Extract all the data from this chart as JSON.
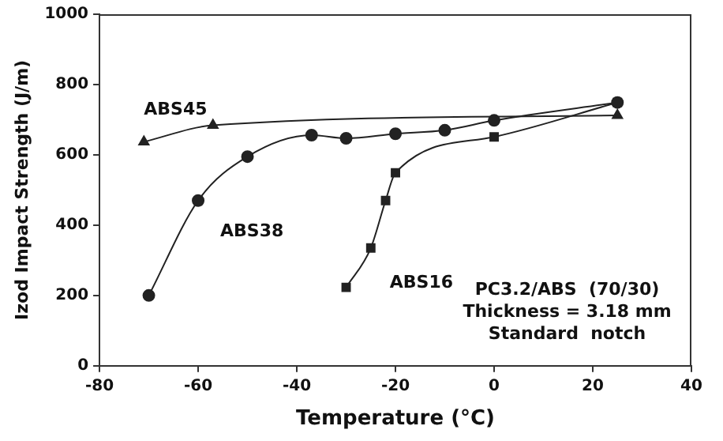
{
  "chart_data": {
    "type": "line",
    "xlabel": "Temperature (°C)",
    "ylabel": "Izod Impact Strength (J/m)",
    "xlim": [
      -80,
      40
    ],
    "xticks": [
      -80,
      -60,
      -40,
      -20,
      0,
      20,
      40
    ],
    "ylim": [
      0,
      1000
    ],
    "yticks": [
      0,
      200,
      400,
      600,
      800,
      1000
    ],
    "grid": false,
    "legend": false,
    "series": [
      {
        "name": "ABS45",
        "color": "#222222",
        "marker": "triangle",
        "x": [
          -71,
          -57,
          25
        ],
        "values": [
          637,
          684,
          712
        ]
      },
      {
        "name": "ABS38",
        "color": "#222222",
        "marker": "circle",
        "x": [
          -70,
          -60,
          -50,
          -37,
          -30,
          -20,
          -10,
          0,
          25
        ],
        "values": [
          200,
          470,
          595,
          656,
          647,
          660,
          670,
          698,
          749
        ]
      },
      {
        "name": "ABS16",
        "color": "#222222",
        "marker": "square",
        "x": [
          -30,
          -25,
          -22,
          -20,
          0,
          25
        ],
        "values": [
          223,
          335,
          470,
          549,
          651,
          749
        ]
      }
    ],
    "annotations": [
      "PC3.2/ABS  (70/30)",
      "Thickness = 3.18 mm",
      "Standard  notch"
    ]
  }
}
